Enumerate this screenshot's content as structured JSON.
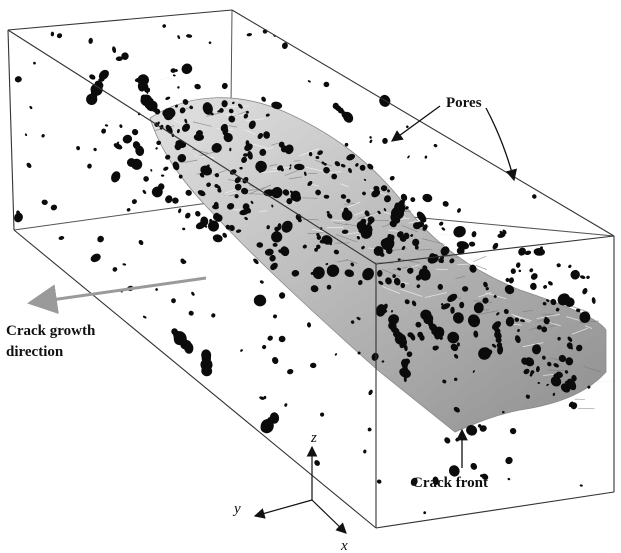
{
  "figure": {
    "labels": {
      "pores": "Pores",
      "crack_growth_line1": "Crack growth",
      "crack_growth_line2": "direction",
      "crack_front": "Crack front"
    },
    "axes": {
      "x": "x",
      "y": "y",
      "z": "z"
    },
    "colors": {
      "box_edge": "#333333",
      "pore": "#0b0b0b",
      "crack_light": "#d8d8d8",
      "crack_mid": "#a9a9a9",
      "crack_dark": "#6f6f6f",
      "growth_arrow": "#9a9a9a",
      "annotation": "#111111"
    }
  }
}
